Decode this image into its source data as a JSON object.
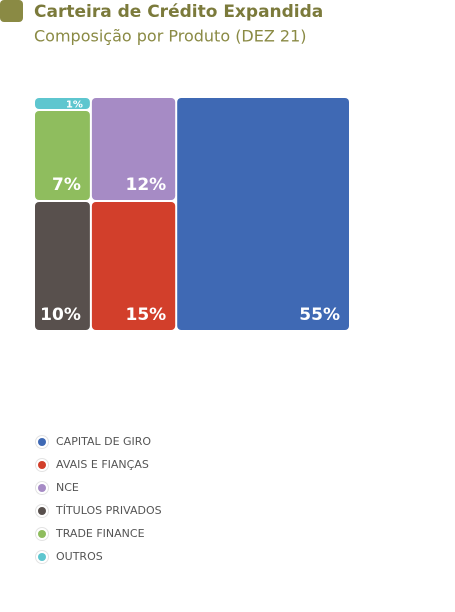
{
  "chart_data": {
    "type": "treemap",
    "title": "Carteira de Crédito Expandida",
    "subtitle": "Composição por Produto (DEZ 21)",
    "categories": [
      "CAPITAL DE GIRO",
      "AVAIS E FIANÇAS",
      "NCE",
      "TÍTULOS PRIVADOS",
      "TRADE FINANCE",
      "OUTROS"
    ],
    "values": [
      55,
      15,
      12,
      10,
      7,
      1
    ],
    "value_labels": [
      "55%",
      "15%",
      "12%",
      "10%",
      "7%",
      "1%"
    ],
    "colors": [
      "#3f69b4",
      "#d23f2b",
      "#a68bc5",
      "#58504d",
      "#8fbd5e",
      "#5ec6cf"
    ]
  }
}
